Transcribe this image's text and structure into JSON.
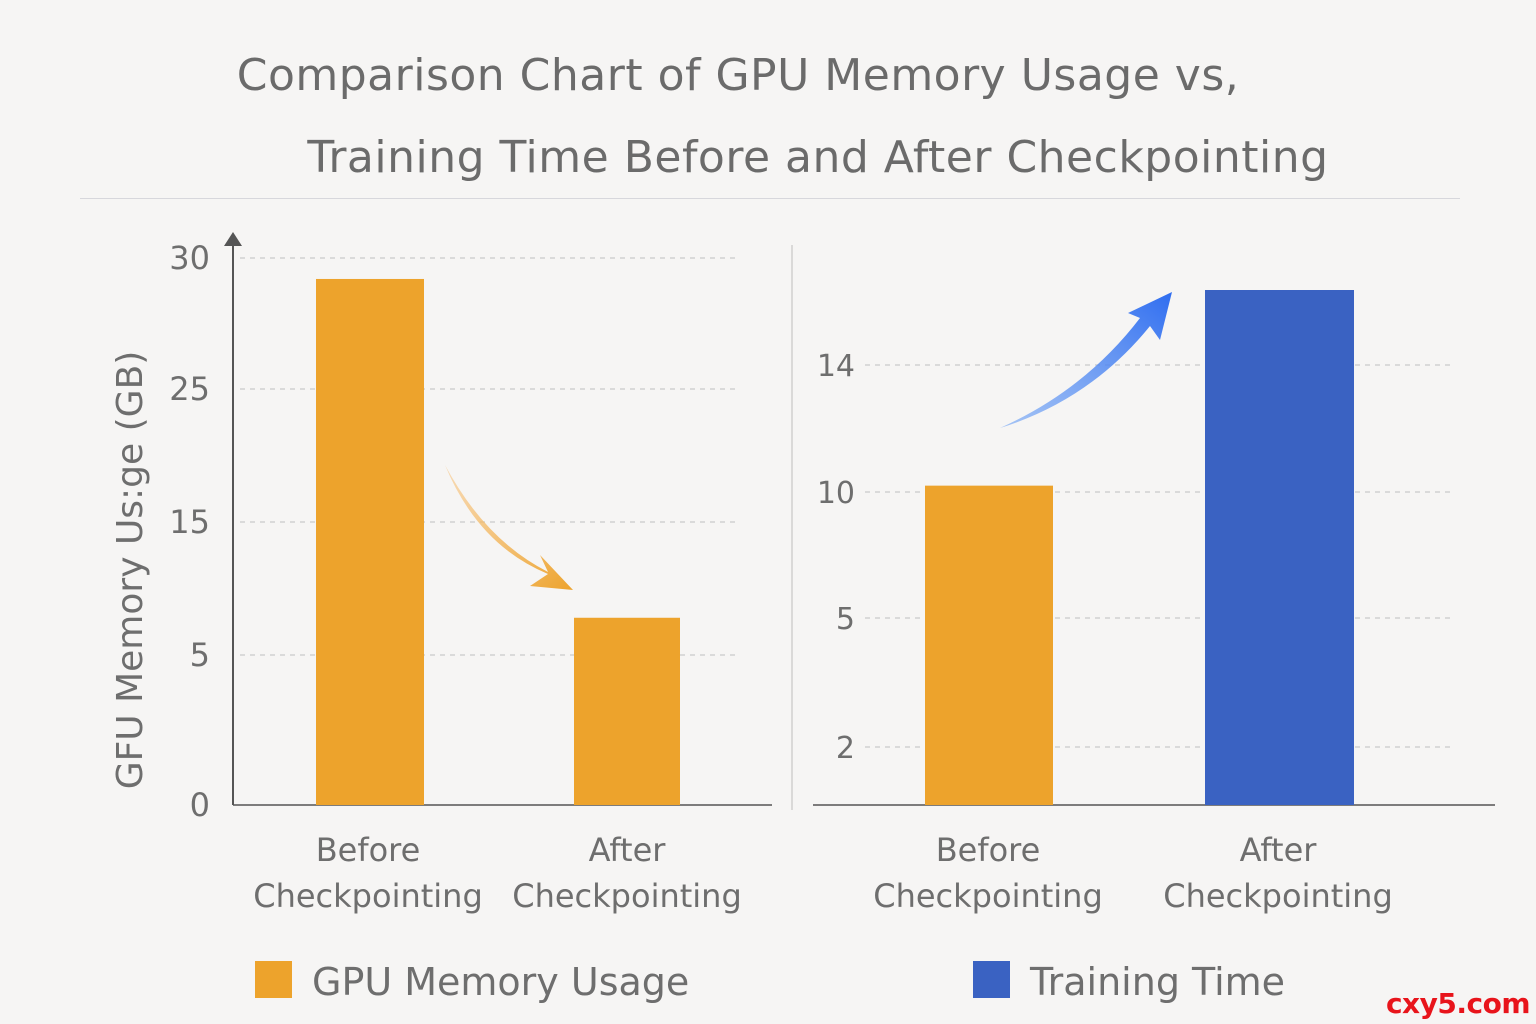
{
  "title_lines": [
    "Comparison Chart of GPU Memory Usage vs,",
    "Training Time Before and After Checkpointing"
  ],
  "watermark": "cxy5.com",
  "colors": {
    "orange": "#eda32c",
    "blue": "#3a62c2",
    "axis": "#555555",
    "grid": "#c9c9c9"
  },
  "chart_data": [
    {
      "type": "bar",
      "title": "",
      "ylabel": "GFU Memory Us:ge (GB)",
      "xlabel": "",
      "categories": [
        "Before\nCheckpointing",
        "After\nCheckpointing"
      ],
      "series": [
        {
          "name": "GPU Memory Usage",
          "color": "#eda32c",
          "values": [
            29.2,
            7.8
          ]
        }
      ],
      "bar_colors": [
        "#eda32c",
        "#eda32c"
      ],
      "yticks": [
        0,
        5,
        15,
        25,
        30
      ],
      "ylim": [
        0,
        30
      ],
      "grid": true,
      "annotation": "orange arrow pointing down from first bar to second bar",
      "legend_position": "bottom-left"
    },
    {
      "type": "bar",
      "title": "",
      "ylabel": "",
      "xlabel": "",
      "categories": [
        "Before\nCheckpointing",
        "After\nCheckpointing"
      ],
      "series": [
        {
          "name": "Training Time",
          "color": "#3a62c2",
          "values": [
            10.2,
            16.5
          ]
        }
      ],
      "bar_colors": [
        "#eda32c",
        "#3a62c2"
      ],
      "yticks": [
        2,
        5,
        10,
        14
      ],
      "ylim": [
        0,
        17
      ],
      "grid": true,
      "annotation": "blue arrow pointing up toward second bar",
      "legend_position": "bottom-right"
    }
  ]
}
